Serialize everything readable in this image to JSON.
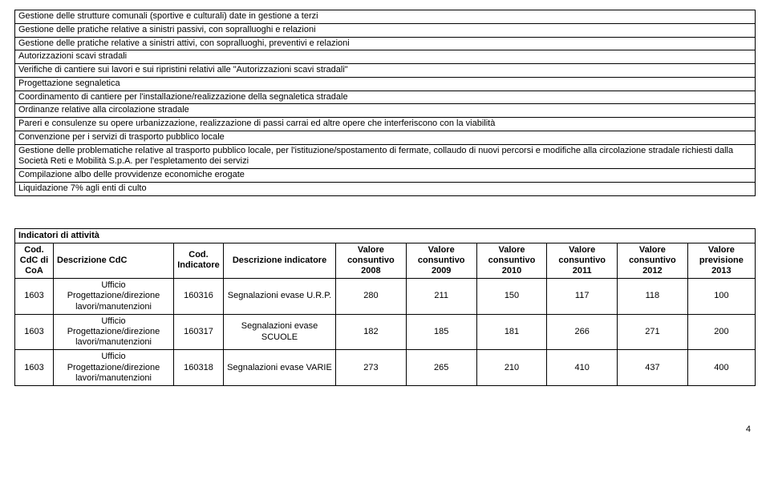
{
  "list_rows": [
    "Gestione delle strutture comunali (sportive e culturali) date in gestione a terzi",
    "Gestione delle pratiche relative a sinistri passivi, con sopralluoghi e relazioni",
    "Gestione delle pratiche relative a sinistri attivi, con sopralluoghi, preventivi e relazioni",
    "Autorizzazioni scavi stradali",
    "Verifiche di cantiere sui lavori e sui ripristini relativi alle \"Autorizzazioni scavi stradali\"",
    "Progettazione segnaletica",
    "Coordinamento di cantiere per l'installazione/realizzazione della segnaletica stradale",
    "Ordinanze relative alla circolazione stradale",
    "Pareri e consulenze su opere urbanizzazione, realizzazione di passi carrai ed altre opere che interferiscono con la viabilità",
    "Convenzione per i servizi di trasporto pubblico locale",
    "Gestione delle problematiche relative al trasporto pubblico locale, per l'istituzione/spostamento di fermate, collaudo di nuovi percorsi e modifiche alla circolazione stradale richiesti dalla Società Reti e Mobilità S.p.A. per l'espletamento dei servizi",
    "Compilazione albo delle provvidenze economiche erogate",
    "Liquidazione 7% agli enti di culto"
  ],
  "indicators": {
    "title": "Indicatori di attività",
    "headers": {
      "cod_cdc": "Cod. CdC di CoA",
      "desc_cdc": "Descrizione CdC",
      "cod_ind": "Cod. Indicatore",
      "desc_ind": "Descrizione indicatore",
      "v2008": "Valore consuntivo 2008",
      "v2009": "Valore consuntivo 2009",
      "v2010": "Valore consuntivo 2010",
      "v2011": "Valore consuntivo 2011",
      "v2012": "Valore consuntivo 2012",
      "vprev": "Valore previsione 2013"
    },
    "rows": [
      {
        "cod_cdc": "1603",
        "desc_cdc": "Ufficio Progettazione/direzione lavori/manutenzioni",
        "cod_ind": "160316",
        "desc_ind": "Segnalazioni evase U.R.P.",
        "v2008": "280",
        "v2009": "211",
        "v2010": "150",
        "v2011": "117",
        "v2012": "118",
        "vprev": "100"
      },
      {
        "cod_cdc": "1603",
        "desc_cdc": "Ufficio Progettazione/direzione lavori/manutenzioni",
        "cod_ind": "160317",
        "desc_ind": "Segnalazioni evase SCUOLE",
        "v2008": "182",
        "v2009": "185",
        "v2010": "181",
        "v2011": "266",
        "v2012": "271",
        "vprev": "200"
      },
      {
        "cod_cdc": "1603",
        "desc_cdc": "Ufficio Progettazione/direzione lavori/manutenzioni",
        "cod_ind": "160318",
        "desc_ind": "Segnalazioni evase VARIE",
        "v2008": "273",
        "v2009": "265",
        "v2010": "210",
        "v2011": "410",
        "v2012": "437",
        "vprev": "400"
      }
    ]
  },
  "page_number": "4"
}
